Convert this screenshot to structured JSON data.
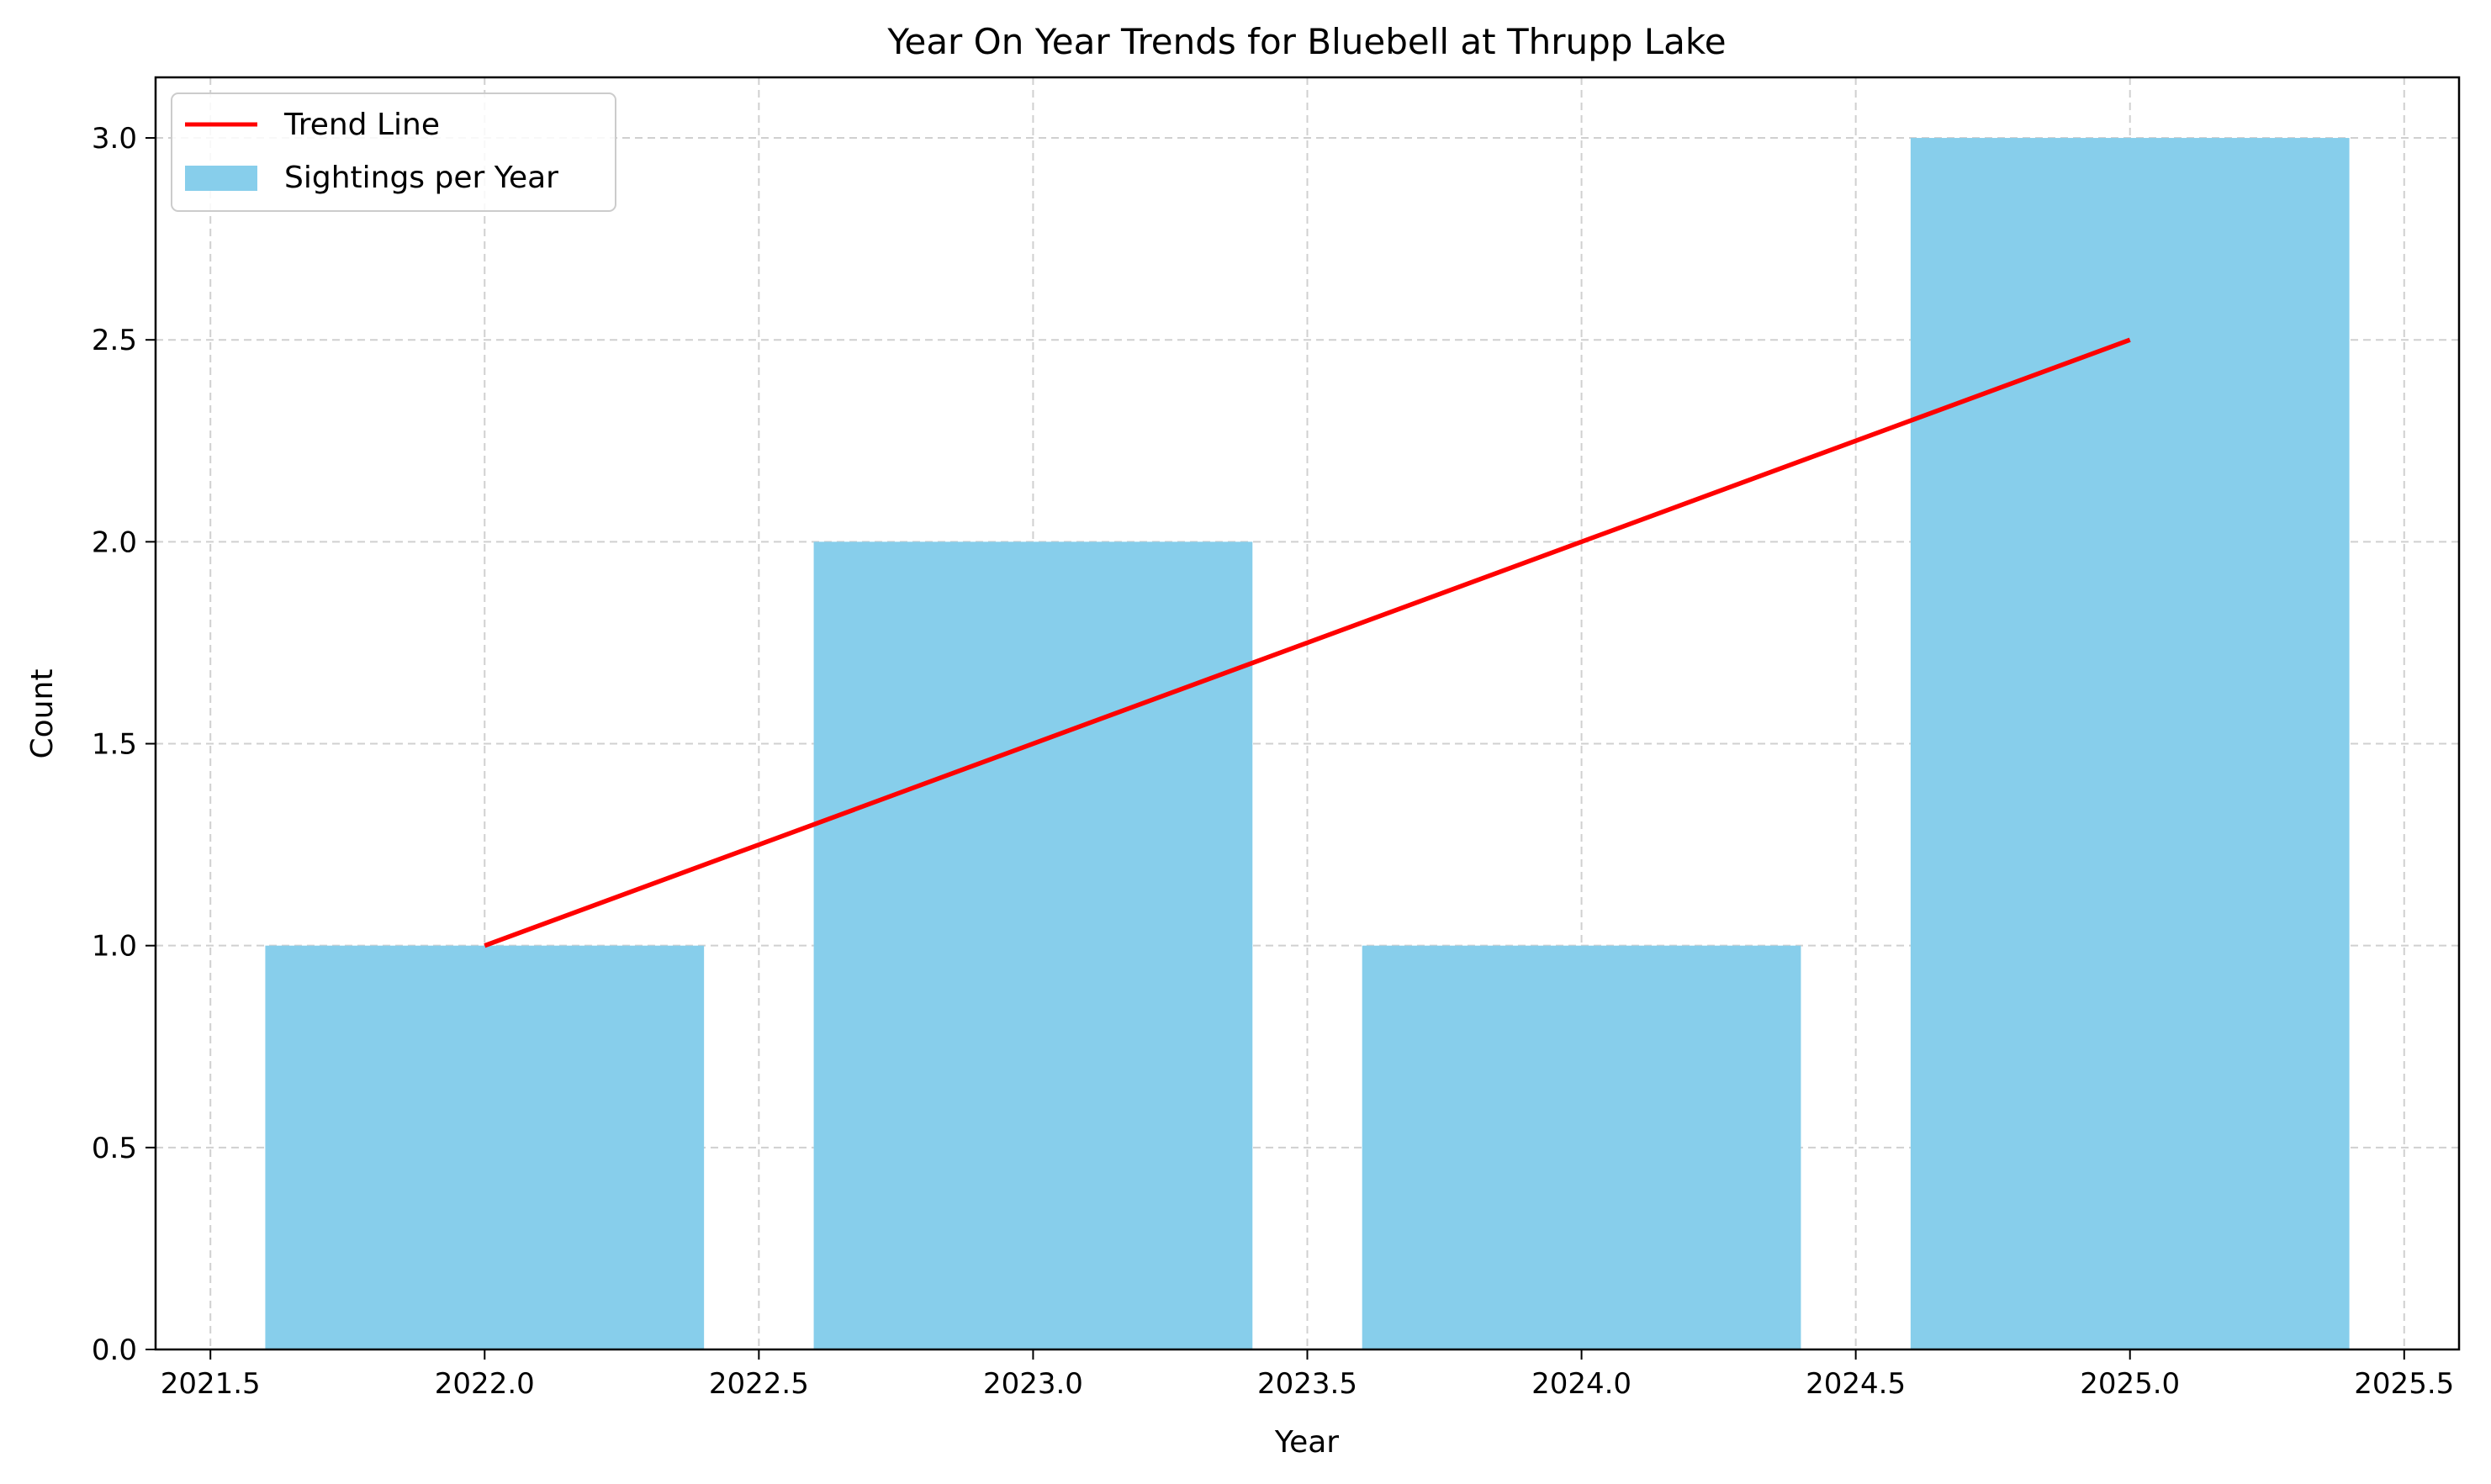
{
  "chart_data": {
    "type": "bar",
    "title": "Year On Year Trends for Bluebell at Thrupp Lake",
    "xlabel": "Year",
    "ylabel": "Count",
    "xlim": [
      2021.4,
      2025.6
    ],
    "ylim": [
      0,
      3.15
    ],
    "x_ticks": [
      2021.5,
      2022.0,
      2022.5,
      2023.0,
      2023.5,
      2024.0,
      2024.5,
      2025.0,
      2025.5
    ],
    "x_tick_labels": [
      "2021.5",
      "2022.0",
      "2022.5",
      "2023.0",
      "2023.5",
      "2024.0",
      "2024.5",
      "2025.0",
      "2025.5"
    ],
    "y_ticks": [
      0.0,
      0.5,
      1.0,
      1.5,
      2.0,
      2.5,
      3.0
    ],
    "y_tick_labels": [
      "0.0",
      "0.5",
      "1.0",
      "1.5",
      "2.0",
      "2.5",
      "3.0"
    ],
    "grid": true,
    "legend_position": "top-left",
    "bar_width": 0.8,
    "series": [
      {
        "name": "Sightings per Year",
        "kind": "bar",
        "color": "#87CEEB",
        "x": [
          2022,
          2023,
          2024,
          2025
        ],
        "values": [
          1,
          2,
          1,
          3
        ]
      },
      {
        "name": "Trend Line",
        "kind": "line",
        "color": "#FF0000",
        "x": [
          2022,
          2025
        ],
        "values": [
          1.0,
          2.5
        ]
      }
    ]
  }
}
